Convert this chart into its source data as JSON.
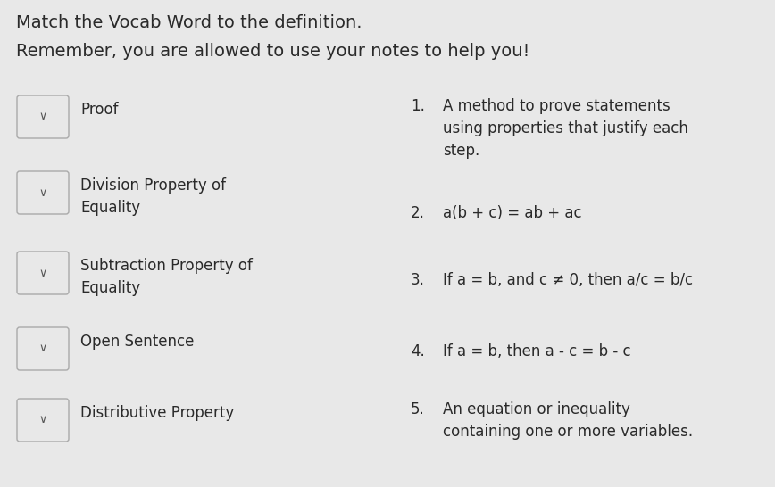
{
  "bg_color": "#e8e8e8",
  "title1": "Match the Vocab Word to the definition.",
  "title2": "Remember, you are allowed to use your notes to help you!",
  "title_fontsize": 14,
  "title2_fontsize": 14,
  "left_items": [
    "Proof",
    "Division Property of\nEquality",
    "Subtraction Property of\nEquality",
    "Open Sentence",
    "Distributive Property"
  ],
  "right_items": [
    {
      "num": "1.",
      "text": "A method to prove statements\nusing properties that justify each\nstep."
    },
    {
      "num": "2.",
      "text": "a(b + c) = ab + ac"
    },
    {
      "num": "3.",
      "text": "If a = b, and c ≠ 0, then a/c = b/c"
    },
    {
      "num": "4.",
      "text": "If a = b, then a - c = b - c"
    },
    {
      "num": "5.",
      "text": "An equation or inequality\ncontaining one or more variables."
    }
  ],
  "box_facecolor": "#e0e0e0",
  "box_edge_color": "#aaaaaa",
  "box_fill_color": "#e8e8e8",
  "text_color": "#2a2a2a",
  "item_fontsize": 12,
  "num_fontsize": 12,
  "chevron": "∨"
}
